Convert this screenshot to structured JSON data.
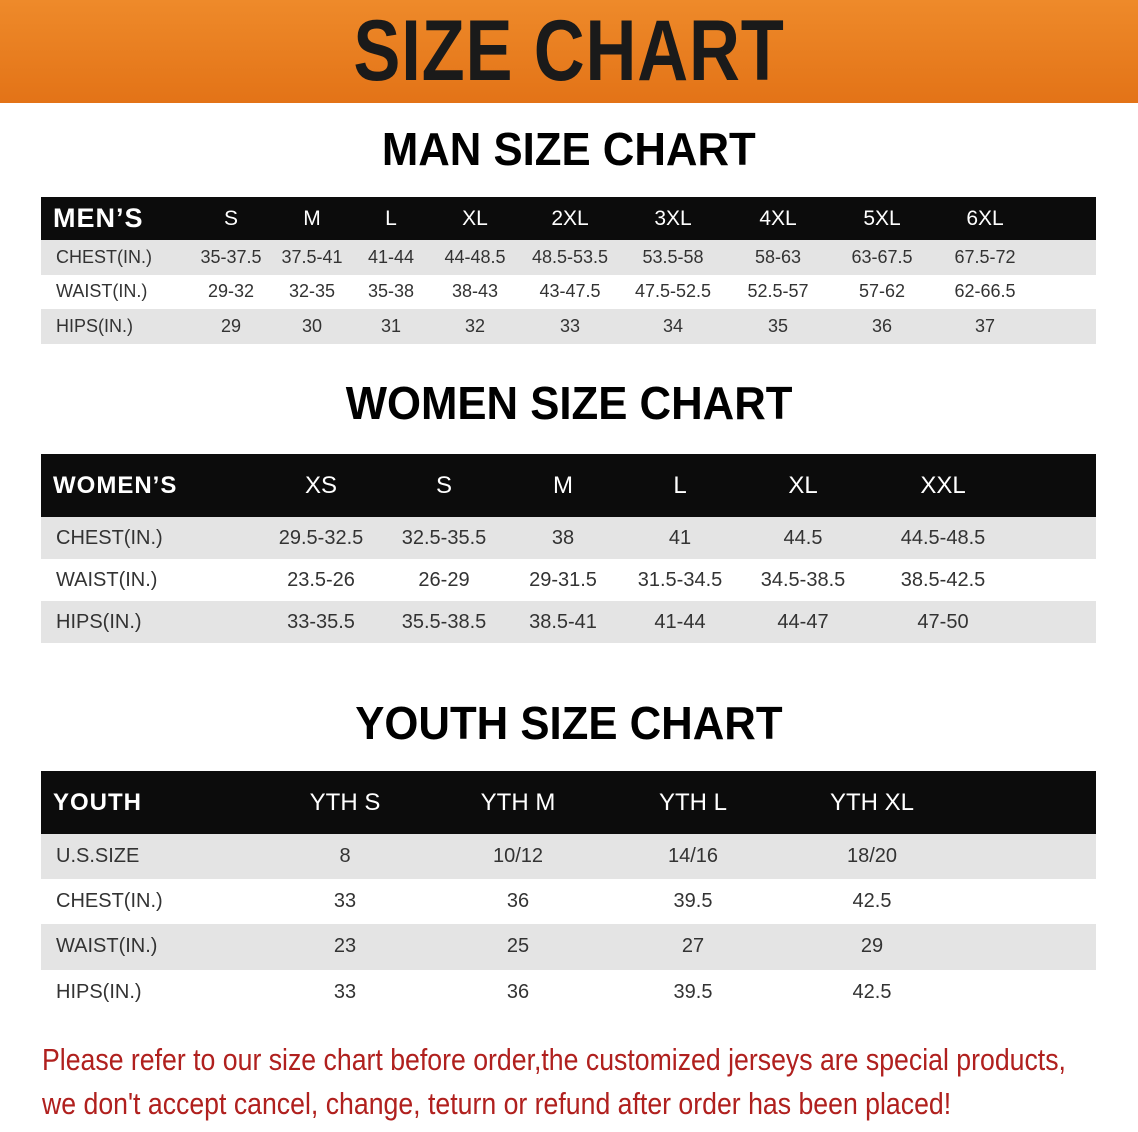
{
  "banner": {
    "title": "SIZE CHART",
    "color": "#e8761a"
  },
  "men": {
    "title": "MAN SIZE CHART",
    "header": "MEN’S",
    "sizes": [
      "S",
      "M",
      "L",
      "XL",
      "2XL",
      "3XL",
      "4XL",
      "5XL",
      "6XL"
    ],
    "rows": [
      {
        "label": "CHEST(IN.)",
        "values": [
          "35-37.5",
          "37.5-41",
          "41-44",
          "44-48.5",
          "48.5-53.5",
          "53.5-58",
          "58-63",
          "63-67.5",
          "67.5-72"
        ]
      },
      {
        "label": "WAIST(IN.)",
        "values": [
          "29-32",
          "32-35",
          "35-38",
          "38-43",
          "43-47.5",
          "47.5-52.5",
          "52.5-57",
          "57-62",
          "62-66.5"
        ]
      },
      {
        "label": "HIPS(IN.)",
        "values": [
          "29",
          "30",
          "31",
          "32",
          "33",
          "34",
          "35",
          "36",
          "37"
        ]
      }
    ]
  },
  "women": {
    "title": "WOMEN SIZE CHART",
    "header": "WOMEN’S",
    "sizes": [
      "XS",
      "S",
      "M",
      "L",
      "XL",
      "XXL"
    ],
    "rows": [
      {
        "label": "CHEST(IN.)",
        "values": [
          "29.5-32.5",
          "32.5-35.5",
          "38",
          "41",
          "44.5",
          "44.5-48.5"
        ]
      },
      {
        "label": "WAIST(IN.)",
        "values": [
          "23.5-26",
          "26-29",
          "29-31.5",
          "31.5-34.5",
          "34.5-38.5",
          "38.5-42.5"
        ]
      },
      {
        "label": "HIPS(IN.)",
        "values": [
          "33-35.5",
          "35.5-38.5",
          "38.5-41",
          "41-44",
          "44-47",
          "47-50"
        ]
      }
    ]
  },
  "youth": {
    "title": "YOUTH SIZE CHART",
    "header": "YOUTH",
    "sizes": [
      "YTH S",
      "YTH M",
      "YTH L",
      "YTH XL"
    ],
    "rows": [
      {
        "label": "U.S.SIZE",
        "values": [
          "8",
          "10/12",
          "14/16",
          "18/20"
        ]
      },
      {
        "label": "CHEST(IN.)",
        "values": [
          "33",
          "36",
          "39.5",
          "42.5"
        ]
      },
      {
        "label": "WAIST(IN.)",
        "values": [
          "23",
          "25",
          "27",
          "29"
        ]
      },
      {
        "label": "HIPS(IN.)",
        "values": [
          "33",
          "36",
          "39.5",
          "42.5"
        ]
      }
    ]
  },
  "note": {
    "line1": "Please refer to our size chart before order,the customized jerseys are special products,",
    "line2": "we don't accept cancel, change, teturn or refund after order has been placed!"
  }
}
